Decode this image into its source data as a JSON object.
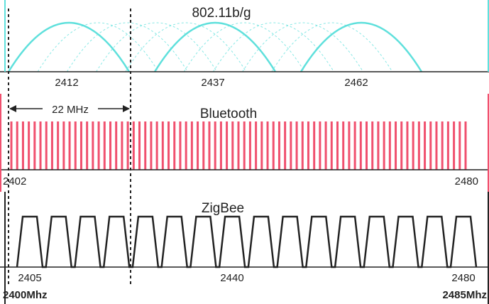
{
  "wifi": {
    "title": "802.11b/g",
    "color": "#5fe0dc",
    "channels": [
      2412,
      2437,
      2462
    ],
    "labels": [
      "2412",
      "2437",
      "2462"
    ],
    "channel_spacing_mhz": 5,
    "overlap_channel_count": 11
  },
  "annotation": {
    "width_label": "22 MHz"
  },
  "bluetooth": {
    "title": "Bluetooth",
    "color": "#f0506e",
    "start_mhz": 2402,
    "end_mhz": 2480,
    "channel_spacing_mhz": 1,
    "start_label": "2402",
    "end_label": "2480"
  },
  "zigbee": {
    "title": "ZigBee",
    "color": "#222222",
    "start_mhz": 2405,
    "end_mhz": 2480,
    "channel_spacing_mhz": 5,
    "labels": [
      "2405",
      "2440",
      "2480"
    ]
  },
  "band": {
    "start_label": "2400Mhz",
    "end_label": "2485Mhz"
  }
}
